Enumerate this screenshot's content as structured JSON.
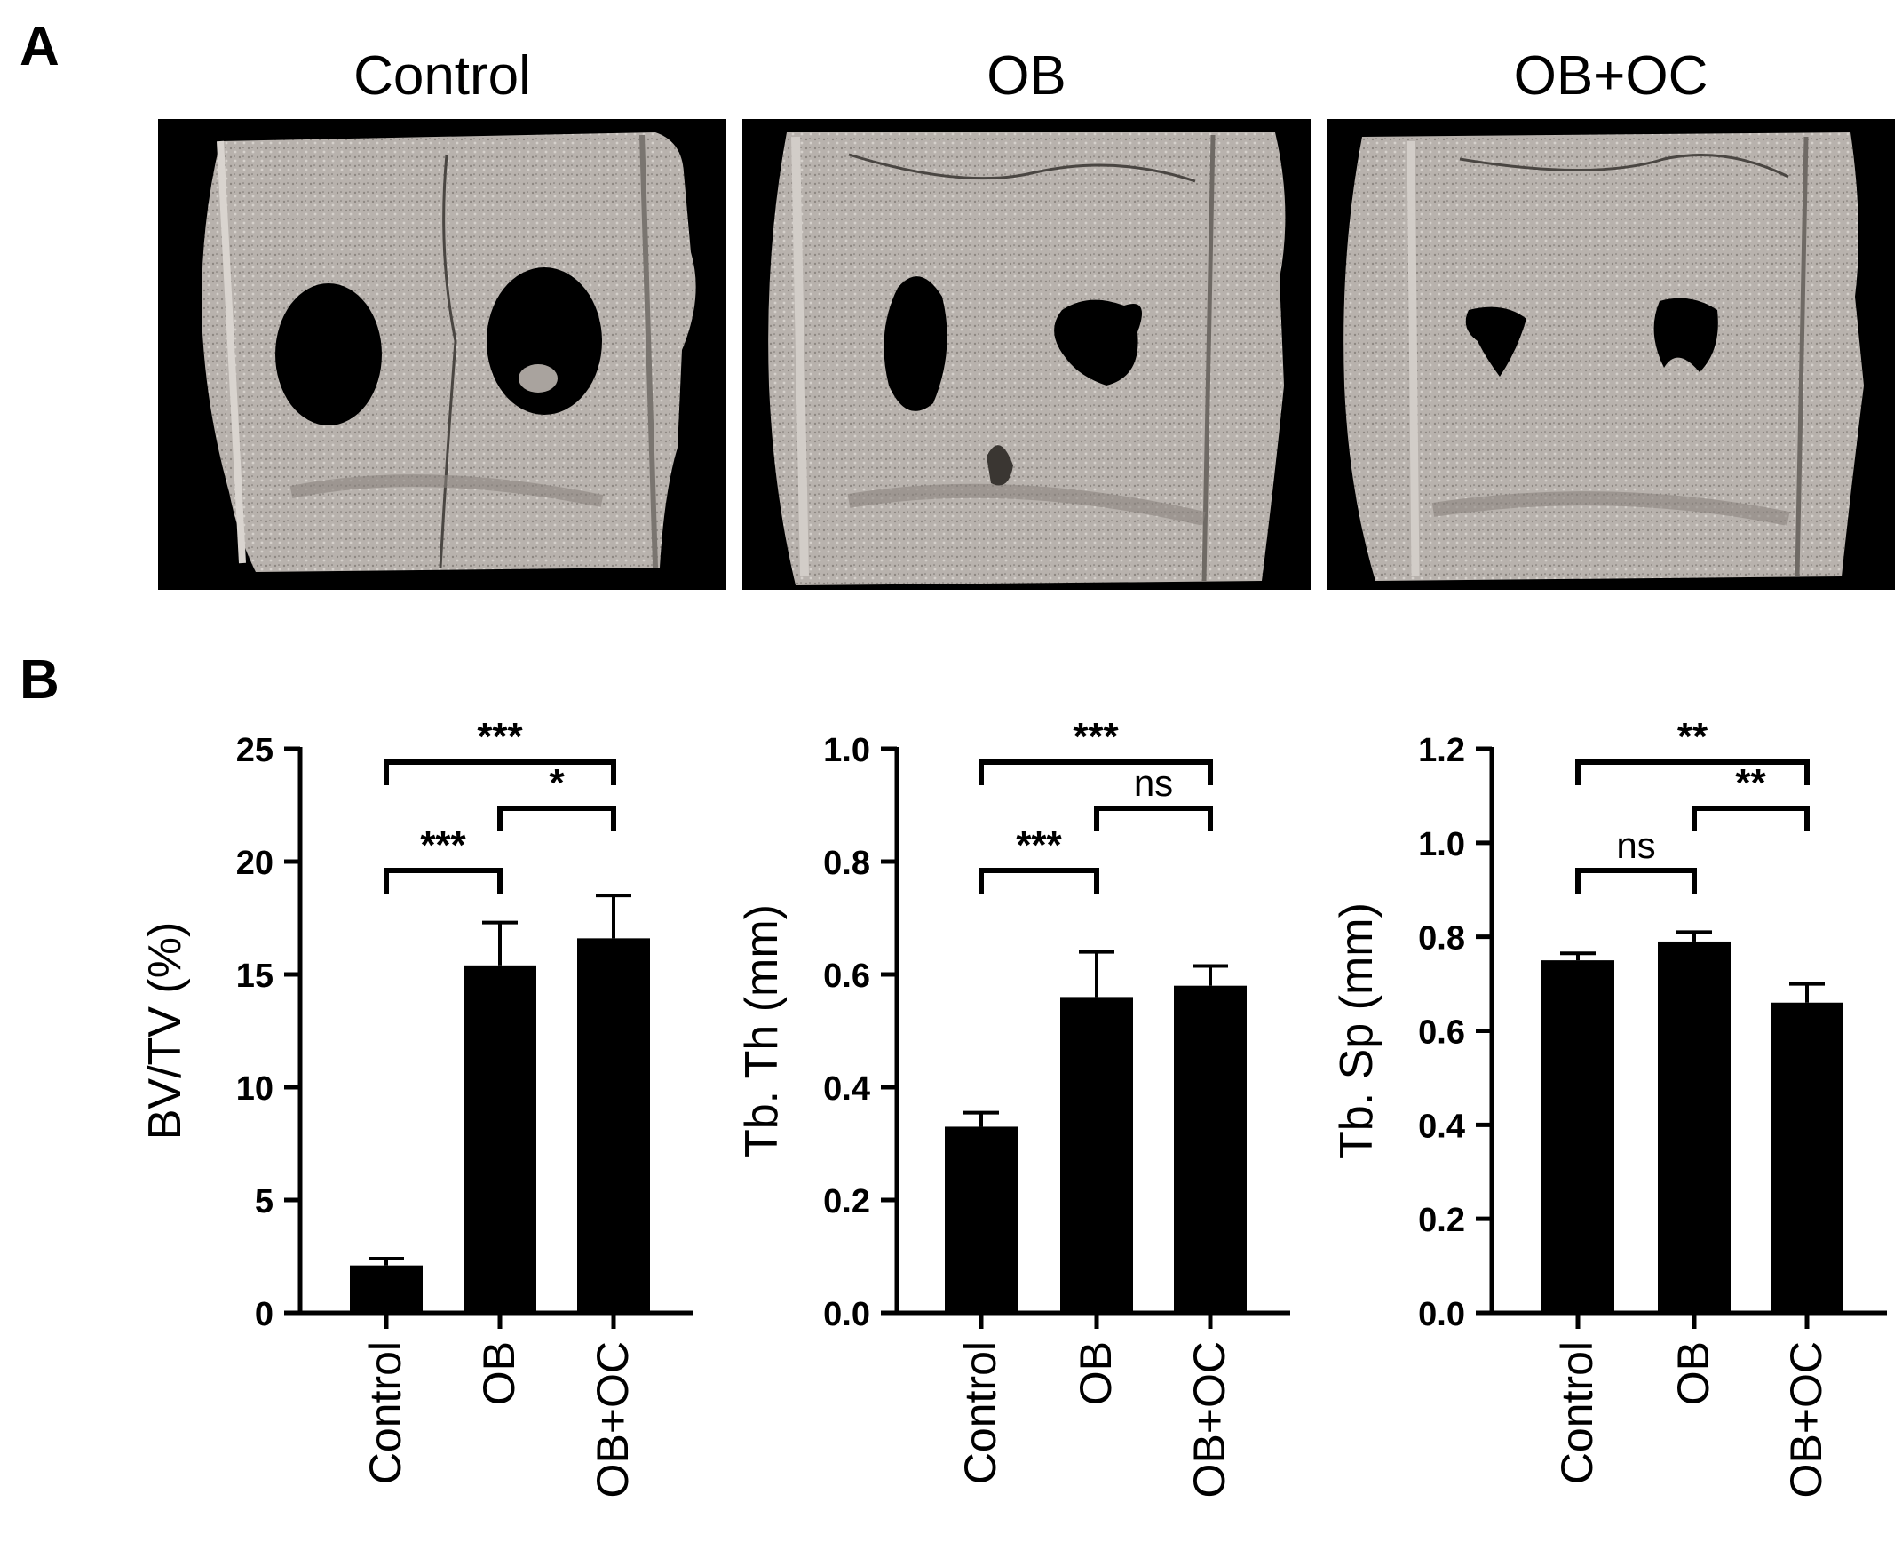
{
  "panel_a": {
    "letter": "A",
    "images": [
      {
        "title": "Control",
        "hole_style": "clean"
      },
      {
        "title": "OB",
        "hole_style": "partial"
      },
      {
        "title": "OB+OC",
        "hole_style": "filled"
      }
    ]
  },
  "panel_b": {
    "letter": "B"
  },
  "chart_data": [
    {
      "type": "bar",
      "categories": [
        "Control",
        "OB",
        "OB+OC"
      ],
      "values": [
        2.1,
        15.4,
        16.6
      ],
      "errors": [
        0.3,
        1.9,
        1.9
      ],
      "ylabel": "BV/TV (%)",
      "ylim": [
        0,
        25
      ],
      "yticks": [
        0,
        5,
        10,
        15,
        20,
        25
      ],
      "ytick_labels": [
        "0",
        "5",
        "10",
        "15",
        "20",
        "25"
      ],
      "bar_color": "#000000",
      "significance": [
        {
          "from": 0,
          "to": 1,
          "label": "***",
          "level": 0
        },
        {
          "from": 1,
          "to": 2,
          "label": "*",
          "level": 1
        },
        {
          "from": 0,
          "to": 2,
          "label": "***",
          "level": 2
        }
      ]
    },
    {
      "type": "bar",
      "categories": [
        "Control",
        "OB",
        "OB+OC"
      ],
      "values": [
        0.33,
        0.56,
        0.58
      ],
      "errors": [
        0.025,
        0.08,
        0.035
      ],
      "ylabel": "Tb. Th (mm)",
      "ylim": [
        0,
        1.0
      ],
      "yticks": [
        0,
        0.2,
        0.4,
        0.6,
        0.8,
        1.0
      ],
      "ytick_labels": [
        "0.0",
        "0.2",
        "0.4",
        "0.6",
        "0.8",
        "1.0"
      ],
      "bar_color": "#000000",
      "significance": [
        {
          "from": 0,
          "to": 1,
          "label": "***",
          "level": 0
        },
        {
          "from": 1,
          "to": 2,
          "label": "ns",
          "level": 1
        },
        {
          "from": 0,
          "to": 2,
          "label": "***",
          "level": 2
        }
      ]
    },
    {
      "type": "bar",
      "categories": [
        "Control",
        "OB",
        "OB+OC"
      ],
      "values": [
        0.75,
        0.79,
        0.66
      ],
      "errors": [
        0.015,
        0.02,
        0.04
      ],
      "ylabel": "Tb. Sp (mm)",
      "ylim": [
        0,
        1.2
      ],
      "yticks": [
        0,
        0.2,
        0.4,
        0.6,
        0.8,
        1.0,
        1.2
      ],
      "ytick_labels": [
        "0.0",
        "0.2",
        "0.4",
        "0.6",
        "0.8",
        "1.0",
        "1.2"
      ],
      "bar_color": "#000000",
      "significance": [
        {
          "from": 0,
          "to": 1,
          "label": "ns",
          "level": 0
        },
        {
          "from": 1,
          "to": 2,
          "label": "**",
          "level": 1
        },
        {
          "from": 0,
          "to": 2,
          "label": "**",
          "level": 2
        }
      ]
    }
  ]
}
